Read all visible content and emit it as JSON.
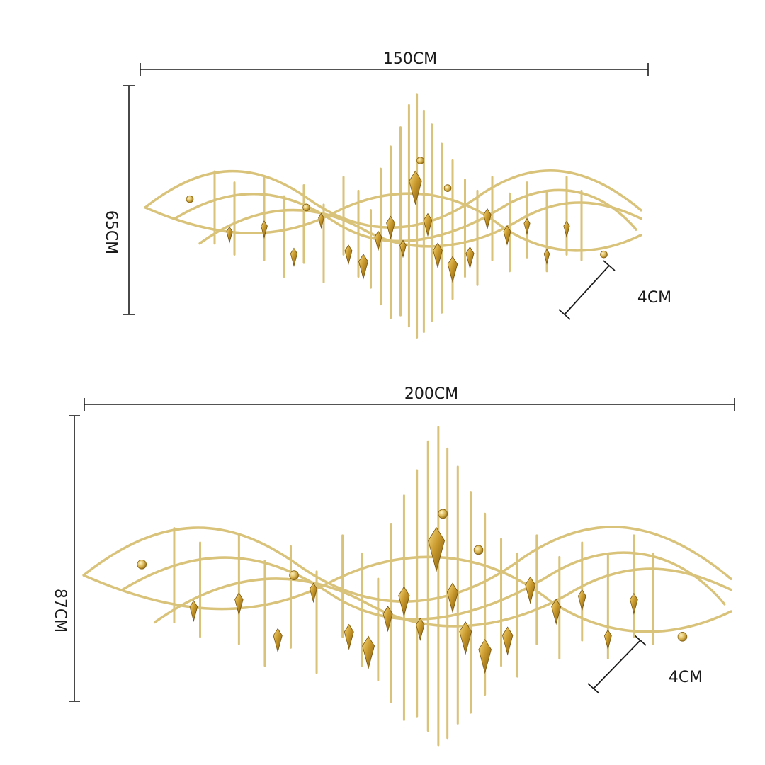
{
  "top_item": {
    "width_label": "150CM",
    "height_label": "65CM",
    "depth_label": "4CM"
  },
  "bottom_item": {
    "width_label": "200CM",
    "height_label": "87CM",
    "depth_label": "4CM"
  },
  "colors": {
    "gold_rod": "#d9c27a",
    "gold_crystal_dark": "#8a6410",
    "gold_crystal_light": "#f3d679",
    "dimension_line": "#1a1a1a"
  },
  "icons": [
    "wall-sculpture-gold-icon",
    "dimension-arrow-icon"
  ]
}
